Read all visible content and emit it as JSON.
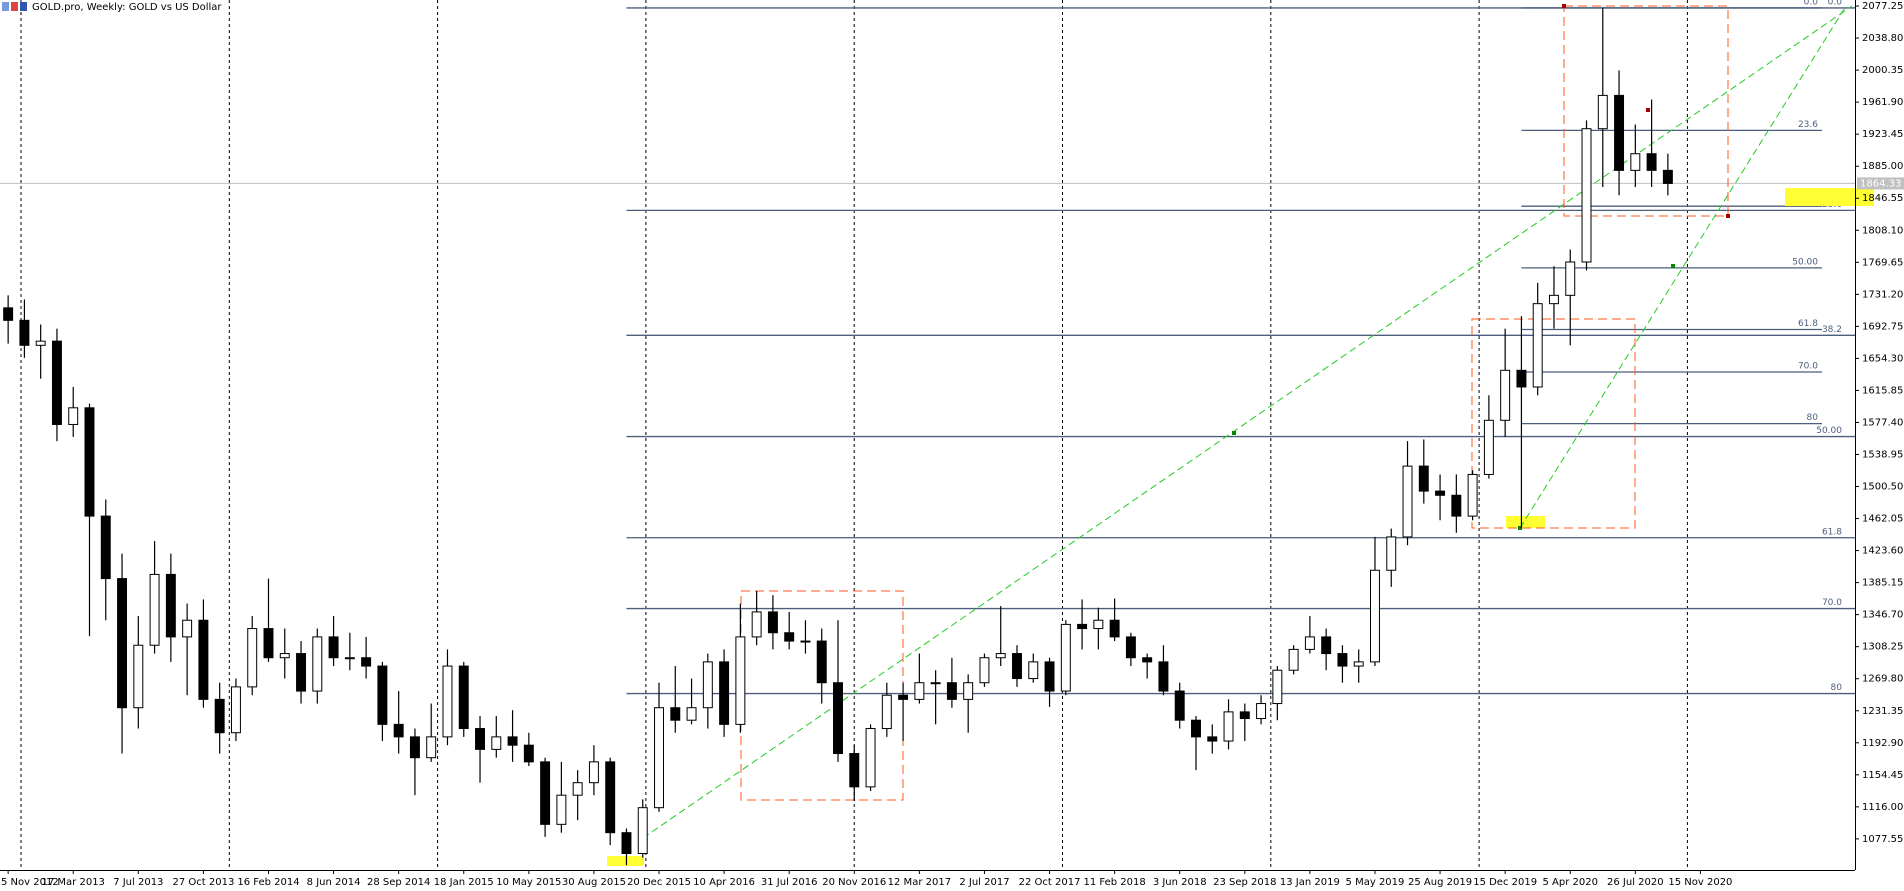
{
  "chart_data": {
    "type": "candlestick",
    "title": "GOLD.pro, Weekly:  GOLD vs US Dollar",
    "categories": [
      "5 Nov 2012",
      null,
      null,
      null,
      "17 Mar 2013",
      null,
      null,
      null,
      "7 Jul 2013",
      null,
      null,
      null,
      "27 Oct 2013",
      null,
      null,
      null,
      "16 Feb 2014",
      null,
      null,
      null,
      "8 Jun 2014",
      null,
      null,
      null,
      "28 Sep 2014",
      null,
      null,
      null,
      "18 Jan 2015",
      null,
      null,
      null,
      "10 May 2015",
      null,
      null,
      null,
      "30 Aug 2015",
      null,
      null,
      null,
      "20 Dec 2015",
      null,
      null,
      null,
      "10 Apr 2016",
      null,
      null,
      null,
      "31 Jul 2016",
      null,
      null,
      null,
      "20 Nov 2016",
      null,
      null,
      null,
      "12 Mar 2017",
      null,
      null,
      null,
      "2 Jul 2017",
      null,
      null,
      null,
      "22 Oct 2017",
      null,
      null,
      null,
      "11 Feb 2018",
      null,
      null,
      null,
      "3 Jun 2018",
      null,
      null,
      null,
      "23 Sep 2018",
      null,
      null,
      null,
      "13 Jan 2019",
      null,
      null,
      null,
      "5 May 2019",
      null,
      null,
      null,
      "25 Aug 2019",
      null,
      null,
      null,
      "15 Dec 2019",
      null,
      null,
      null,
      "5 Apr 2020",
      null,
      null,
      null,
      "26 Jul 2020",
      null,
      null,
      null,
      "15 Nov 2020"
    ],
    "open": [
      1715,
      1700,
      1670,
      1675,
      1575,
      1595,
      1465,
      1390,
      1235,
      1310,
      1395,
      1320,
      1340,
      1245,
      1205,
      1260,
      1330,
      1295,
      1300,
      1255,
      1320,
      1295,
      1295,
      1285,
      1215,
      1200,
      1175,
      1200,
      1285,
      1210,
      1185,
      1200,
      1190,
      1170,
      1095,
      1130,
      1145,
      1170,
      1085,
      1060,
      1115,
      1235,
      1220,
      1235,
      1290,
      1215,
      1320,
      1350,
      1325,
      1315,
      1315,
      1265,
      1180,
      1140,
      1210,
      1250,
      1245,
      1265,
      1265,
      1245,
      1265,
      1295,
      1300,
      1270,
      1290,
      1255,
      1335,
      1330,
      1340,
      1320,
      1295,
      1290,
      1255,
      1220,
      1200,
      1195,
      1230,
      1222,
      1240,
      1280,
      1305,
      1320,
      1300,
      1285,
      1290,
      1400,
      1440,
      1525,
      1495,
      1490,
      1465,
      1515,
      1580,
      1640,
      1620,
      1720,
      1730,
      1770,
      1930,
      1970,
      1880,
      1900,
      1880,
      null,
      null
    ],
    "high": [
      1730,
      1725,
      1695,
      1690,
      1620,
      1600,
      1485,
      1420,
      1345,
      1435,
      1420,
      1360,
      1365,
      1265,
      1270,
      1345,
      1390,
      1330,
      1315,
      1330,
      1345,
      1325,
      1320,
      1290,
      1255,
      1210,
      1240,
      1305,
      1290,
      1225,
      1225,
      1232,
      1205,
      1175,
      1170,
      1160,
      1190,
      1175,
      1090,
      1125,
      1265,
      1285,
      1270,
      1300,
      1305,
      1360,
      1375,
      1370,
      1350,
      1340,
      1330,
      1340,
      1190,
      1215,
      1265,
      1265,
      1300,
      1280,
      1295,
      1275,
      1300,
      1357,
      1310,
      1300,
      1295,
      1340,
      1365,
      1355,
      1366,
      1325,
      1300,
      1310,
      1265,
      1225,
      1215,
      1245,
      1240,
      1250,
      1285,
      1310,
      1345,
      1330,
      1310,
      1305,
      1440,
      1450,
      1555,
      1557,
      1515,
      1515,
      1520,
      1610,
      1690,
      1705,
      1745,
      1765,
      1785,
      1940,
      2075,
      2000,
      1935,
      1965,
      1900,
      null,
      null
    ],
    "low": [
      1672,
      1655,
      1630,
      1555,
      1560,
      1321,
      1340,
      1180,
      1210,
      1300,
      1290,
      1250,
      1235,
      1180,
      1195,
      1250,
      1290,
      1270,
      1240,
      1240,
      1285,
      1280,
      1270,
      1195,
      1180,
      1130,
      1170,
      1190,
      1200,
      1145,
      1175,
      1170,
      1165,
      1080,
      1085,
      1100,
      1130,
      1070,
      1046,
      1055,
      1110,
      1205,
      1215,
      1210,
      1200,
      1205,
      1310,
      1305,
      1305,
      1300,
      1240,
      1170,
      1123,
      1135,
      1200,
      1195,
      1240,
      1215,
      1235,
      1205,
      1260,
      1285,
      1260,
      1265,
      1236,
      1250,
      1305,
      1305,
      1315,
      1285,
      1270,
      1250,
      1210,
      1160,
      1180,
      1185,
      1195,
      1215,
      1220,
      1275,
      1300,
      1280,
      1265,
      1265,
      1285,
      1380,
      1430,
      1480,
      1460,
      1445,
      1460,
      1510,
      1560,
      1451,
      1610,
      1690,
      1670,
      1760,
      1860,
      1850,
      1860,
      1860,
      1850,
      null,
      null
    ],
    "close": [
      1700,
      1670,
      1675,
      1575,
      1595,
      1465,
      1390,
      1235,
      1310,
      1395,
      1320,
      1340,
      1245,
      1205,
      1260,
      1330,
      1295,
      1300,
      1255,
      1320,
      1295,
      1295,
      1285,
      1215,
      1200,
      1175,
      1200,
      1285,
      1210,
      1185,
      1200,
      1190,
      1170,
      1095,
      1130,
      1145,
      1170,
      1085,
      1060,
      1115,
      1235,
      1220,
      1235,
      1290,
      1215,
      1320,
      1350,
      1325,
      1315,
      1315,
      1265,
      1180,
      1140,
      1210,
      1250,
      1245,
      1265,
      1265,
      1245,
      1265,
      1295,
      1300,
      1270,
      1290,
      1255,
      1335,
      1330,
      1340,
      1320,
      1295,
      1290,
      1255,
      1220,
      1200,
      1195,
      1230,
      1222,
      1240,
      1280,
      1305,
      1320,
      1300,
      1285,
      1290,
      1400,
      1440,
      1525,
      1495,
      1490,
      1465,
      1515,
      1580,
      1640,
      1620,
      1720,
      1730,
      1770,
      1930,
      1970,
      1880,
      1900,
      1880,
      1864.33,
      null,
      null
    ],
    "up_color": "#ffffff",
    "down_color": "#000000",
    "wick_color": "#000000",
    "ylim": [
      1040.2,
      2084.5
    ],
    "yticks": [
      1077.55,
      {
        "value": 1116,
        "label": "1116.00"
      },
      1154.45,
      {
        "value": 1192.9,
        "label": "1192.90"
      },
      1231.35,
      {
        "value": 1269.8,
        "label": "1269.80"
      },
      1308.25,
      {
        "value": 1346.7,
        "label": "1346.70"
      },
      1385.15,
      {
        "value": 1423.6,
        "label": "1423.60"
      },
      1462.05,
      {
        "value": 1500.5,
        "label": "1500.50"
      },
      1538.95,
      {
        "value": 1577.4,
        "label": "1577.40"
      },
      1615.85,
      {
        "value": 1654.3,
        "label": "1654.30"
      },
      1692.75,
      {
        "value": 1731.2,
        "label": "1731.20"
      },
      1769.65,
      {
        "value": 1808.1,
        "label": "1808.10"
      },
      1846.55,
      {
        "value": 1885,
        "label": "1885.00"
      },
      1923.45,
      {
        "value": 1961.9,
        "label": "1961.90"
      },
      2000.35,
      {
        "value": 2038.8,
        "label": "2038.80"
      },
      2077.25
    ],
    "current_price": 1864.33,
    "fibonacci": [
      {
        "color": "#4c5e7e",
        "levels": [
          {
            "value": 2075,
            "label": "0.0"
          },
          {
            "value": 1832,
            "label": "23.6"
          },
          {
            "value": 1682,
            "label": "38.2"
          },
          {
            "value": 1560.5,
            "label": "50.00"
          },
          {
            "value": 1439,
            "label": "61.8"
          },
          {
            "value": 1354,
            "label": "70.0"
          },
          {
            "value": 1252,
            "label": "80"
          }
        ]
      },
      {
        "color": "#4c5e7e",
        "levels": [
          {
            "value": 2075,
            "label": "0.0"
          },
          {
            "value": 1928,
            "label": "23.6"
          },
          {
            "value": 1837,
            "label": "38.2"
          },
          {
            "value": 1763,
            "label": "50.00"
          },
          {
            "value": 1689,
            "label": "61.8"
          },
          {
            "value": 1638,
            "label": "70.0"
          },
          {
            "value": 1576,
            "label": "80"
          }
        ]
      }
    ]
  }
}
